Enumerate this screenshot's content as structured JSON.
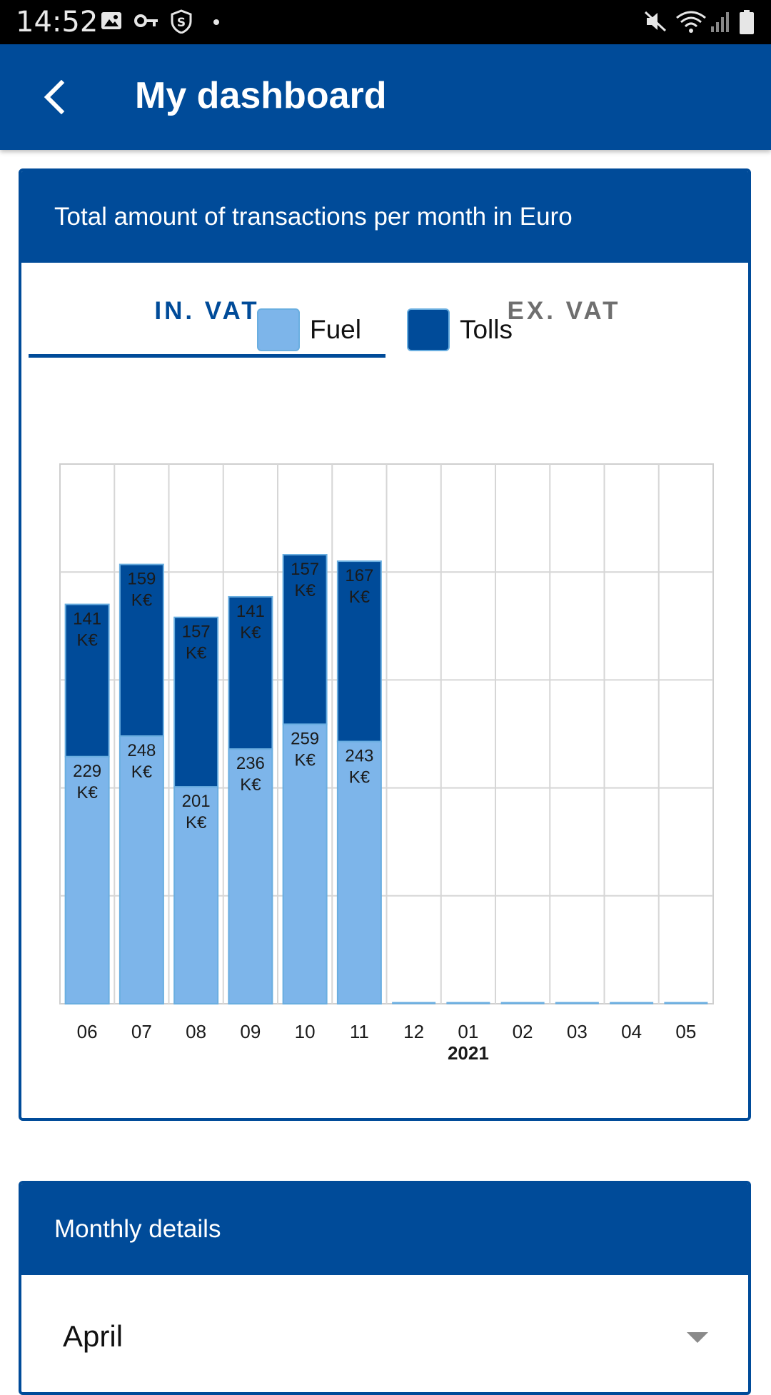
{
  "status_bar": {
    "time": "14:52",
    "icons_left": [
      "image-icon",
      "key-icon",
      "shield-s-icon",
      "dot-icon"
    ],
    "icons_right": [
      "mute-icon",
      "wifi-icon",
      "signal-icon",
      "battery-icon"
    ]
  },
  "app_bar": {
    "title": "My dashboard",
    "back_icon": "chevron-left-icon",
    "color": "#004b99"
  },
  "chart_card": {
    "title": "Total amount of transactions per month in Euro",
    "tabs": [
      {
        "label": "IN. VAT",
        "active": true
      },
      {
        "label": "EX. VAT",
        "active": false
      }
    ]
  },
  "chart_data": {
    "type": "bar",
    "stacked": true,
    "categories": [
      "06",
      "07",
      "08",
      "09",
      "10",
      "11",
      "12",
      "01",
      "02",
      "03",
      "04",
      "05"
    ],
    "year_marker": {
      "category": "01",
      "label": "2021"
    },
    "series": [
      {
        "name": "Fuel",
        "color": "#7db5ea",
        "values": [
          229,
          248,
          201,
          236,
          259,
          243,
          0,
          0,
          0,
          0,
          0,
          0
        ],
        "labels": [
          "229\nK€",
          "248\nK€",
          "201\nK€",
          "236\nK€",
          "259\nK€",
          "243\nK€",
          "",
          "",
          "",
          "",
          "",
          ""
        ]
      },
      {
        "name": "Tolls",
        "color": "#004b99",
        "values": [
          141,
          159,
          157,
          141,
          157,
          167,
          0,
          0,
          0,
          0,
          0,
          0
        ],
        "labels": [
          "141\nK€",
          "159\nK€",
          "157\nK€",
          "141\nK€",
          "157\nK€",
          "167\nK€",
          "",
          "",
          "",
          "",
          "",
          ""
        ]
      }
    ],
    "ylim": [
      0,
      500
    ],
    "grid": true,
    "legend": "top-center"
  },
  "details_card": {
    "title": "Monthly details",
    "selected_month": "April"
  }
}
